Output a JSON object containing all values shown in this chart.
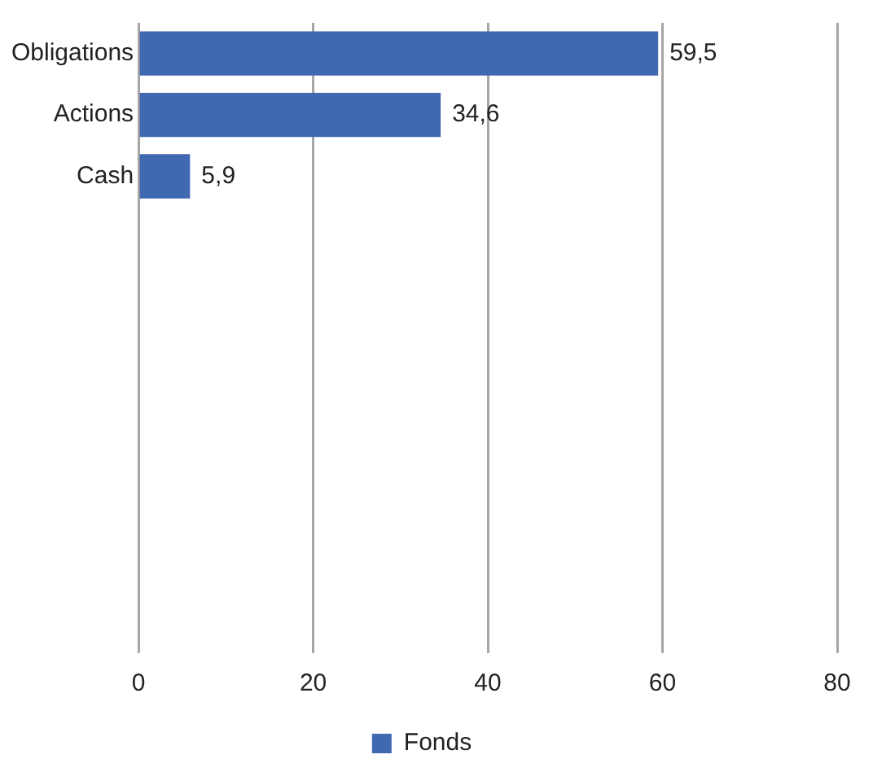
{
  "chart_data": {
    "type": "bar",
    "orientation": "horizontal",
    "categories": [
      "Obligations",
      "Actions",
      "Cash",
      null,
      null,
      null,
      null,
      null,
      null,
      null
    ],
    "series": [
      {
        "name": "Fonds",
        "color": "#4169b1",
        "values": [
          59.5,
          34.6,
          5.9,
          null,
          null,
          null,
          null,
          null,
          null,
          null
        ],
        "value_labels": [
          "59,5",
          "34,6",
          "5,9",
          null,
          null,
          null,
          null,
          null,
          null,
          null
        ]
      }
    ],
    "xlim": [
      0,
      80
    ],
    "xticks": [
      0,
      20,
      40,
      60,
      80
    ],
    "grid": "x",
    "legend": "bottom"
  }
}
